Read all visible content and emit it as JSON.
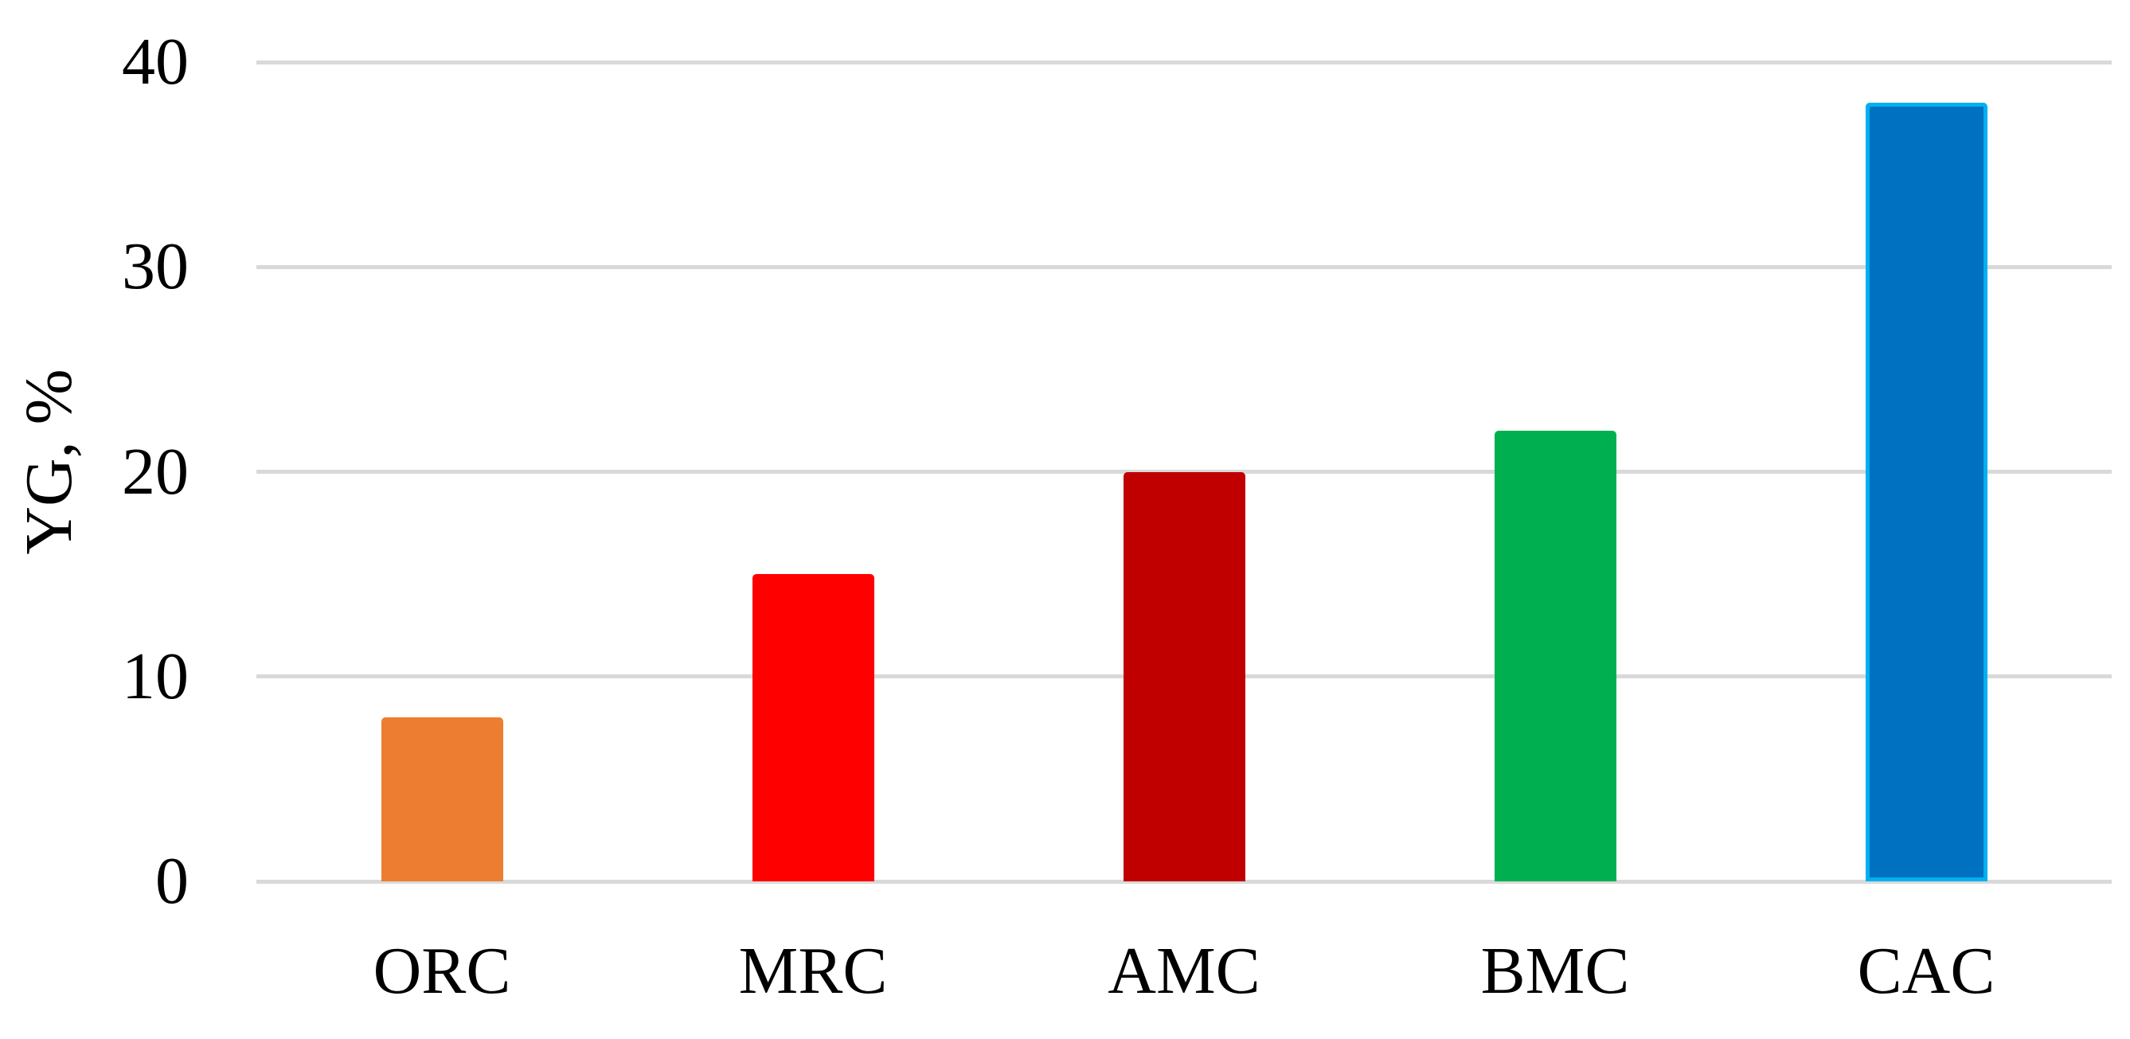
{
  "chart_data": {
    "type": "bar",
    "title": "",
    "xlabel": "",
    "ylabel": "YG, %",
    "categories": [
      "ORC",
      "MRC",
      "AMC",
      "BMC",
      "CAC"
    ],
    "values": [
      8,
      15,
      20,
      22,
      38
    ],
    "yticks": [
      0,
      10,
      20,
      30,
      40
    ],
    "ylim": [
      0,
      40
    ],
    "grid": "horizontal",
    "legend": "none",
    "background_color": "#FFFFFF",
    "gridline_color": "#D9D9D9",
    "text_color": "#000000",
    "bar_fill_colors": [
      "#ED7D31",
      "#FF0000",
      "#C00000",
      "#00B050",
      "#0070C0"
    ],
    "bar_border_colors": [
      "none",
      "none",
      "none",
      "none",
      "#00B0F0"
    ]
  }
}
